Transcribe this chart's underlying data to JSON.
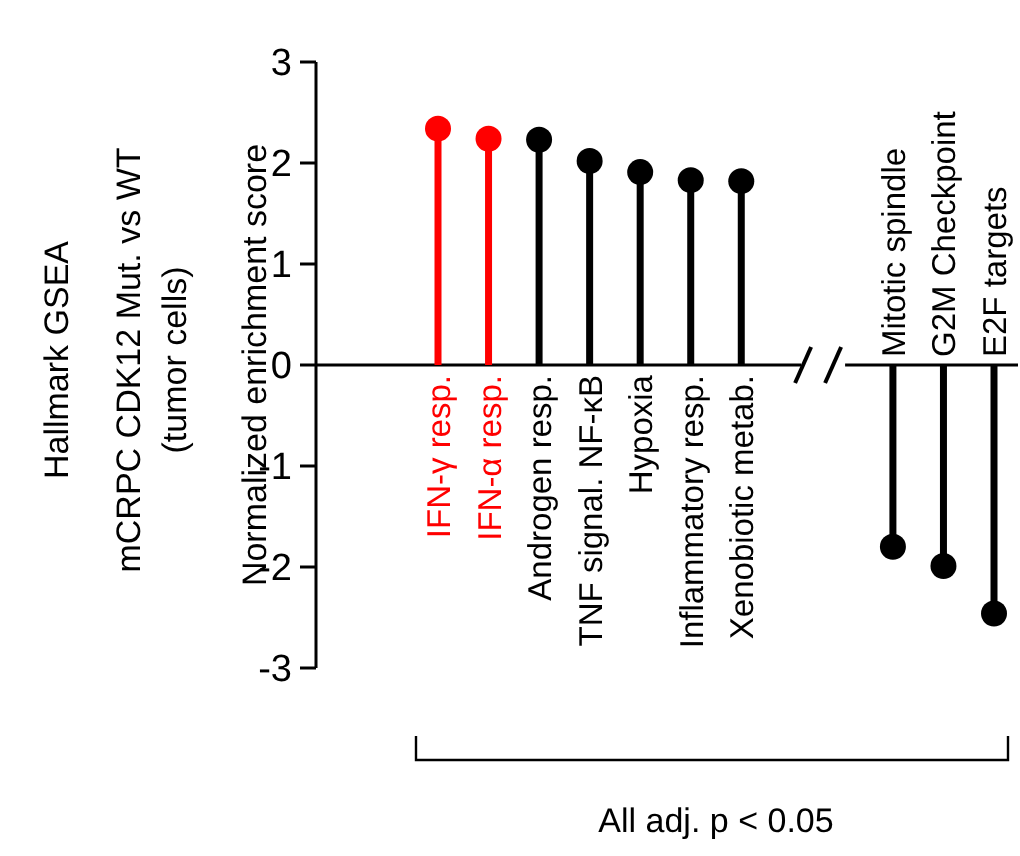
{
  "chart_data": {
    "type": "lollipop",
    "title": "Hallmark GSEA",
    "subtitle": "mCRPC CDK12 Mut. vs WT",
    "ylabel": "Normalized enrichment score",
    "categories": [
      "IFN-γ resp.",
      "IFN-α resp.",
      "Androgen resp.",
      "TNF signal. NF-κB",
      "Hypoxia",
      "Inflammatory resp.",
      "Xenobiotic metab.",
      null,
      null,
      "Mitotic spindle",
      "G2M Checkpoint",
      "E2F targets"
    ],
    "values": [
      2.34,
      2.24,
      2.23,
      2.02,
      1.91,
      1.83,
      1.82,
      null,
      null,
      -1.8,
      -1.99,
      -2.46
    ],
    "colors": [
      "#ff0000",
      "#ff0000",
      "#000000",
      "#000000",
      "#000000",
      "#000000",
      "#000000",
      null,
      null,
      "#000000",
      "#000000",
      "#000000"
    ],
    "ylim": [
      -3,
      3
    ],
    "yticks": [
      -3,
      -2,
      -1,
      0,
      1,
      2,
      3
    ],
    "marker": "circle",
    "grid": false,
    "annotations": [
      "(tumor cells)",
      "All adj. p < 0.05"
    ]
  }
}
